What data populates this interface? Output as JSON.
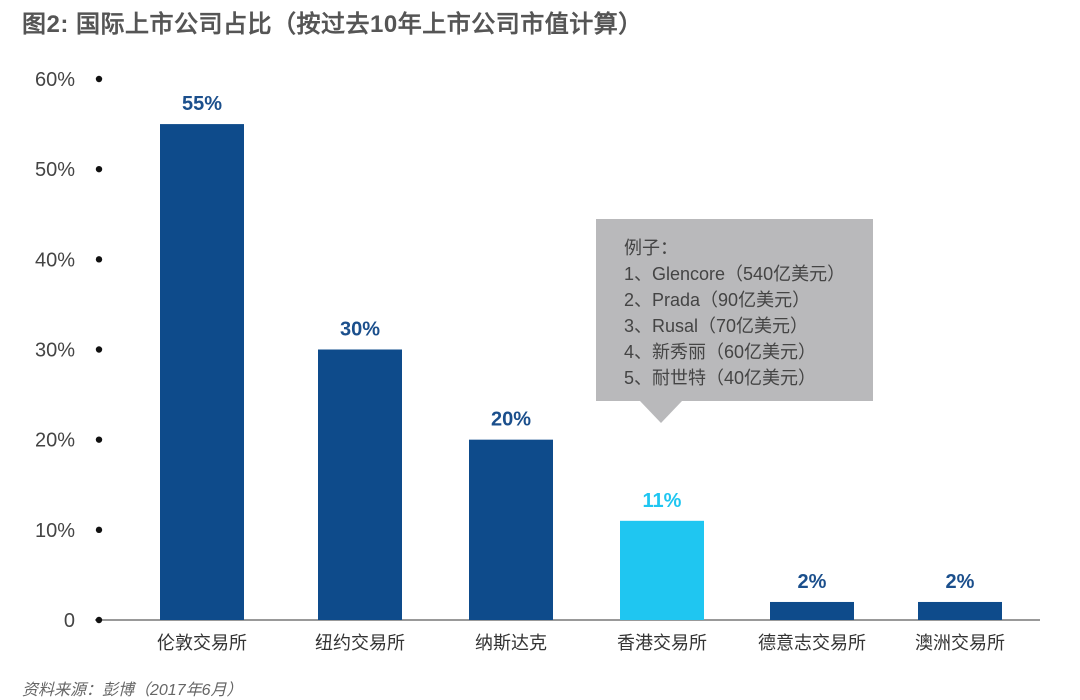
{
  "title": "图2: 国际上市公司占比（按过去10年上市公司市值计算）",
  "source": "资料来源：彭博（2017年6月）",
  "colors": {
    "bar": "#0e4b8b",
    "highlight": "#1fc6f1",
    "label": "#1b4f8c",
    "highlight_label": "#1fc6f1",
    "axis": "#333333"
  },
  "tooltip": {
    "heading": "例子：",
    "items": [
      "1、Glencore（540亿美元）",
      "2、Prada（90亿美元）",
      "3、Rusal（70亿美元）",
      "4、新秀丽（60亿美元）",
      "5、耐世特（40亿美元）"
    ]
  },
  "chart_data": {
    "type": "bar",
    "title": "图2: 国际上市公司占比（按过去10年上市公司市值计算）",
    "categories": [
      "伦敦交易所",
      "纽约交易所",
      "纳斯达克",
      "香港交易所",
      "德意志交易所",
      "澳洲交易所"
    ],
    "values": [
      55,
      30,
      20,
      11,
      2,
      2
    ],
    "value_labels": [
      "55%",
      "30%",
      "20%",
      "11%",
      "2%",
      "2%"
    ],
    "highlight_index": 3,
    "ylim": [
      0,
      60
    ],
    "yticks": [
      0,
      10,
      20,
      30,
      40,
      50,
      60
    ],
    "ytick_labels": [
      "0",
      "10%",
      "20%",
      "30%",
      "40%",
      "50%",
      "60%"
    ],
    "xlabel": "",
    "ylabel": "",
    "grid": false,
    "legend": "none"
  }
}
